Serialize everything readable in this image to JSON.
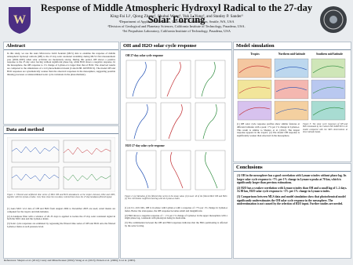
{
  "header": {
    "title": "Response of Middle Atmospheric Hydroxyl Radical to the 27-day Solar Forcing",
    "authors": "King-Fai Li¹, Qiong Zhang², Shuhui Wang³, Yuk L. Yung², and Stanley P. Sander³",
    "affiliations": [
      "¹Department of Applied Mathematics, University of Washington, Seattle, WA, USA",
      "²Division of Geological and Planetary Sciences, California Institute of Technology, Pasadena, USA.",
      "³Jet Propulsion Laboratory, California Institute of Technology, Pasadena, USA"
    ]
  },
  "abstract": {
    "heading": "Abstract",
    "text": "In this study, we use the Aura Microwave Limb Sounder (MLS) data to examine the response of middle atmospheric hydroxyl radicals (OH) to the 27-day solar rotational variability during MLS's first measurement year (2004–2005) when solar activities are moderately strong. During this period, OH shows a positive response to the 27-day solar forcing without significant phase lag, while H2O shows a negative response. In the mesosphere, the OH response to 1% change of Lyman-α is larger than that of H2O. The observed results are compared to the simulations of a 2-D photochemical model (Caltech/JPL KINETICS). The model OH and H2O responses are systematically weaker than the observed responses in the mesosphere, suggesting possible missing processes or underestimated solar cycle variations in the photochemistry."
  },
  "data_method": {
    "heading": "Data and method",
    "caption": "Figure 1: Filtered and unfiltered time series of MLS OH and H2O abundances at the tropics between 2004 and 2005, together with the Lyman-α index. Grey lines show the raw data; colored lines show the 27-day bandpass-filtered signal.",
    "paragraphs": [
      "(1) Aura MLS v2.2 data of OH and H2O from August 2004 to December 2005 are used; zonal means are computed for the tropics and mid-latitudes.",
      "(2) A bandpass filter with a window of 20–35 days is applied to isolate the 27-day solar rotational signal in both the MLS data and the Lyman-α index.",
      "(3) Solar cycle responses are estimated by regressing the filtered time series of OH and H2O onto the filtered Lyman-α index at each pressure level."
    ]
  },
  "oh_h2o": {
    "heading": "OH and H2O solar cycle response",
    "panel_titles": [
      "OH 27-day solar cycle response",
      "H2O 27-day solar cycle response"
    ],
    "caption": "Figure 2: (a) Variation of the filtered time series in the mean value. (b) Lower 40 of the filtered MLS OH and H2O. (c) The correlation coefficient and lag with the Lyman-α index.",
    "paragraphs": [
      "(1) At 0.1–0.01 hPa, OH is in phase with Lyman-α with a response of ~7% per 1% change in Lyman-α index. Below the stratopause, the OH response becomes small and insignificant.",
      "(2) H2O shows a negative response of ~ -1% per 1% change of Lyman-α in the upper mesosphere with a slight phase lag, consistent with photolysis being its main sink.",
      "(3) The combination between the OH and H2O responses indicates that the HOx partitioning is affected by the solar forcing."
    ]
  },
  "model": {
    "heading": "Model simulation",
    "column_titles": [
      "Tropics",
      "Northern mid-latitude",
      "Southern mid-latitude"
    ],
    "caption": "Figure 3: The solar cycle responses of OH and H2O simulated by the Caltech/JPL KINETICS 2-D model compared with the MLS observations at three latitude bands.",
    "paragraph": "(1) OH solar cycle response profiles show similar features at different latitudes with a peak ~7% per 1% change in Lyman-α. This result is similar to Shapiro et al. [2012]. The largest response appears in the tropics. (2) The model OH response is significantly weaker than observed in the mesosphere."
  },
  "conclusions": {
    "heading": "Conclusions",
    "items": [
      "(1) OH in the mesosphere has a good correlation with Lyman-α index without phase lag. Its larger solar cycle response is ~7% per 1% change in Lyman-α peaks at 70 km, which is significantly larger than previous estimations.",
      "(2) H2O has a weaker correlation with Lyman-α index than OH and a small lag of 1–2 days. At 80 km, H2O solar cycle response is ~1% per 1% change in Lyman-α index.",
      "(3) Comparisons between MLS data and model simulation show that photochemical model significantly underestimates the OH solar cycle response in the mesosphere. The underestimation is not caused by the selection of H2O input. Further studies are needed."
    ]
  },
  "references": "References: Shapiro et al. (2012); Canty and Minschwaner (2002); Wang et al. (2013); Pickett et al. (2006); Li et al. (2005)."
}
